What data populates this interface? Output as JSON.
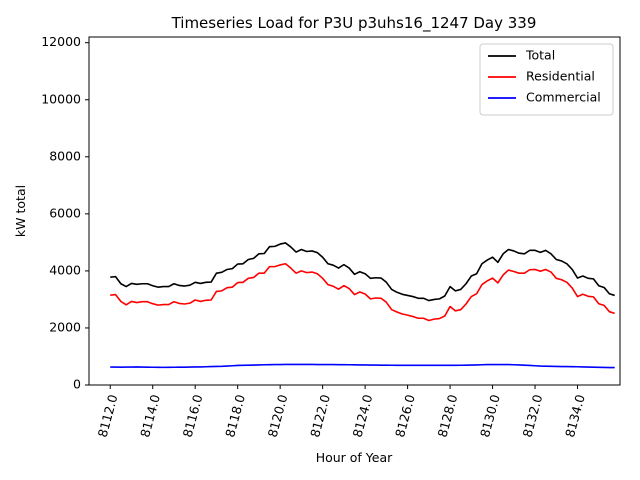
{
  "chart_data": {
    "type": "line",
    "title": "Timeseries Load for P3U p3uhs16_1247  Day 339",
    "xlabel": "Hour of Year",
    "ylabel": "kW total",
    "xlim": [
      8111.0,
      8136.0
    ],
    "ylim": [
      0,
      12200
    ],
    "x_ticks": [
      8112,
      8114,
      8116,
      8118,
      8120,
      8122,
      8124,
      8126,
      8128,
      8130,
      8132,
      8134
    ],
    "x_tick_labels": [
      "8112.0",
      "8114.0",
      "8116.0",
      "8118.0",
      "8120.0",
      "8122.0",
      "8124.0",
      "8126.0",
      "8128.0",
      "8130.0",
      "8132.0",
      "8134.0"
    ],
    "y_ticks": [
      0,
      2000,
      4000,
      6000,
      8000,
      10000,
      12000
    ],
    "y_tick_labels": [
      "0",
      "2000",
      "4000",
      "6000",
      "8000",
      "10000",
      "12000"
    ],
    "legend_position": "top-right",
    "grid": false,
    "x": [
      8112.0,
      8112.25,
      8112.5,
      8112.75,
      8113.0,
      8113.25,
      8113.5,
      8113.75,
      8114.0,
      8114.25,
      8114.5,
      8114.75,
      8115.0,
      8115.25,
      8115.5,
      8115.75,
      8116.0,
      8116.25,
      8116.5,
      8116.75,
      8117.0,
      8117.25,
      8117.5,
      8117.75,
      8118.0,
      8118.25,
      8118.5,
      8118.75,
      8119.0,
      8119.25,
      8119.5,
      8119.75,
      8120.0,
      8120.25,
      8120.5,
      8120.75,
      8121.0,
      8121.25,
      8121.5,
      8121.75,
      8122.0,
      8122.25,
      8122.5,
      8122.75,
      8123.0,
      8123.25,
      8123.5,
      8123.75,
      8124.0,
      8124.25,
      8124.5,
      8124.75,
      8125.0,
      8125.25,
      8125.5,
      8125.75,
      8126.0,
      8126.25,
      8126.5,
      8126.75,
      8127.0,
      8127.25,
      8127.5,
      8127.75,
      8128.0,
      8128.25,
      8128.5,
      8128.75,
      8129.0,
      8129.25,
      8129.5,
      8129.75,
      8130.0,
      8130.25,
      8130.5,
      8130.75,
      8131.0,
      8131.25,
      8131.5,
      8131.75,
      8132.0,
      8132.25,
      8132.5,
      8132.75,
      8133.0,
      8133.25,
      8133.5,
      8133.75,
      8134.0,
      8134.25,
      8134.5,
      8134.75,
      8135.0,
      8135.25,
      8135.5,
      8135.75
    ],
    "series": [
      {
        "name": "Total",
        "color": "#000000",
        "values": [
          3780,
          3800,
          3550,
          3450,
          3560,
          3530,
          3550,
          3550,
          3480,
          3430,
          3450,
          3450,
          3550,
          3490,
          3470,
          3500,
          3600,
          3560,
          3600,
          3610,
          3920,
          3950,
          4050,
          4080,
          4240,
          4250,
          4400,
          4440,
          4600,
          4610,
          4850,
          4860,
          4940,
          4980,
          4840,
          4660,
          4750,
          4680,
          4700,
          4640,
          4480,
          4250,
          4200,
          4100,
          4220,
          4100,
          3880,
          3970,
          3900,
          3740,
          3760,
          3750,
          3600,
          3350,
          3250,
          3180,
          3140,
          3100,
          3040,
          3040,
          2960,
          3000,
          3020,
          3120,
          3450,
          3300,
          3350,
          3550,
          3820,
          3900,
          4250,
          4380,
          4480,
          4300,
          4600,
          4750,
          4700,
          4620,
          4600,
          4720,
          4720,
          4650,
          4720,
          4600,
          4400,
          4350,
          4250,
          4050,
          3750,
          3820,
          3740,
          3720,
          3480,
          3420,
          3200,
          3140
        ]
      },
      {
        "name": "Residential",
        "color": "#ff0000",
        "values": [
          3150,
          3170,
          2930,
          2810,
          2930,
          2890,
          2920,
          2920,
          2850,
          2800,
          2820,
          2820,
          2920,
          2860,
          2840,
          2870,
          2980,
          2930,
          2970,
          2980,
          3280,
          3300,
          3410,
          3430,
          3590,
          3600,
          3740,
          3770,
          3920,
          3920,
          4150,
          4150,
          4210,
          4250,
          4100,
          3920,
          4000,
          3940,
          3960,
          3900,
          3740,
          3520,
          3460,
          3360,
          3480,
          3380,
          3170,
          3260,
          3190,
          3020,
          3050,
          3040,
          2900,
          2640,
          2560,
          2490,
          2450,
          2400,
          2340,
          2340,
          2260,
          2310,
          2330,
          2420,
          2750,
          2600,
          2640,
          2840,
          3100,
          3200,
          3520,
          3650,
          3750,
          3580,
          3860,
          4030,
          3980,
          3920,
          3920,
          4040,
          4050,
          3990,
          4050,
          3960,
          3740,
          3690,
          3600,
          3400,
          3100,
          3180,
          3110,
          3090,
          2850,
          2790,
          2570,
          2510
        ]
      },
      {
        "name": "Commercial",
        "color": "#0000ff",
        "values": [
          630,
          628,
          625,
          628,
          630,
          632,
          628,
          625,
          622,
          620,
          618,
          620,
          622,
          625,
          625,
          628,
          632,
          635,
          640,
          645,
          650,
          655,
          665,
          675,
          685,
          690,
          695,
          700,
          705,
          710,
          712,
          715,
          718,
          720,
          720,
          722,
          722,
          720,
          720,
          718,
          718,
          715,
          715,
          712,
          712,
          710,
          708,
          705,
          705,
          700,
          698,
          695,
          693,
          692,
          690,
          690,
          690,
          690,
          690,
          690,
          690,
          690,
          690,
          690,
          690,
          690,
          692,
          695,
          700,
          705,
          710,
          715,
          715,
          718,
          718,
          715,
          710,
          705,
          695,
          685,
          675,
          665,
          660,
          655,
          650,
          648,
          645,
          642,
          640,
          635,
          630,
          625,
          620,
          615,
          612,
          610
        ]
      }
    ]
  }
}
